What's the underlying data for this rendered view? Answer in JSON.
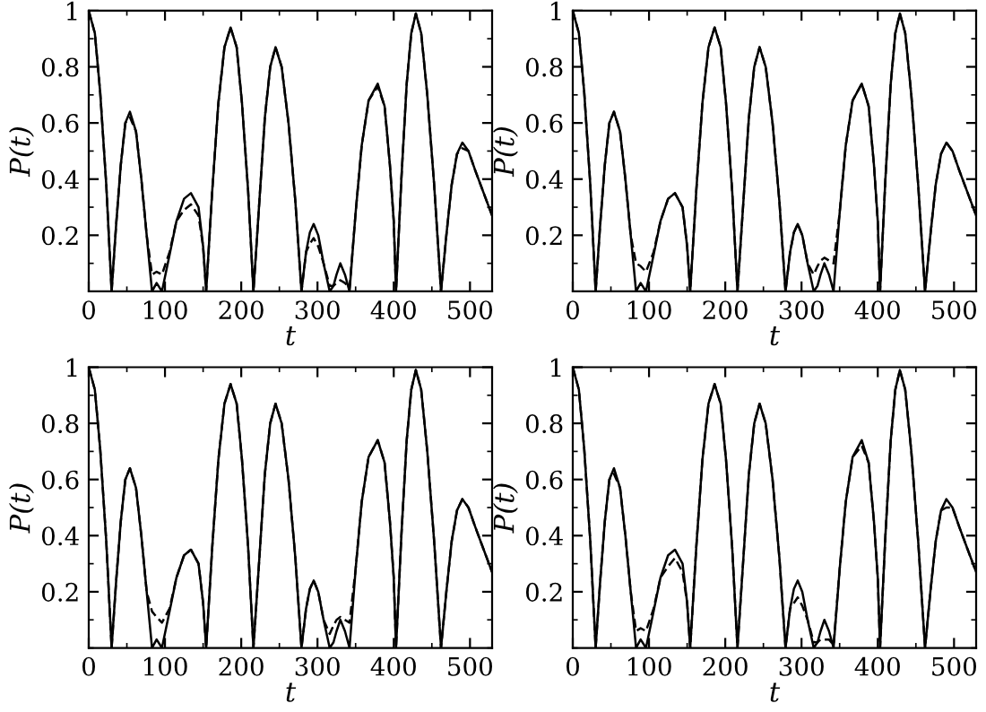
{
  "chart_data": [
    {
      "type": "line",
      "xlabel": "t",
      "ylabel": "P(t)",
      "xlim": [
        0,
        529
      ],
      "ylim": [
        0,
        1
      ],
      "xticks": [
        0,
        100,
        200,
        300,
        400,
        500
      ],
      "yticks": [
        0.2,
        0.4,
        0.6,
        0.8,
        1
      ],
      "grid": false,
      "legend": false,
      "x": [
        0,
        8,
        15,
        23,
        30,
        36,
        42,
        48,
        54,
        62,
        69,
        76,
        83,
        89,
        96,
        106,
        115,
        125,
        134,
        144,
        150,
        154,
        162,
        170,
        178,
        186,
        194,
        201,
        209,
        216,
        224,
        231,
        238,
        245,
        253,
        262,
        271,
        279,
        285,
        290,
        295,
        301,
        308,
        316,
        321,
        325,
        330,
        336,
        342,
        350,
        358,
        367,
        379,
        388,
        395,
        400,
        403,
        410,
        417,
        423,
        429,
        436,
        444,
        453,
        462,
        469,
        476,
        483,
        490,
        498,
        507,
        518,
        529
      ],
      "series": [
        {
          "color": "#000000",
          "line_style": "solid",
          "values": [
            1,
            0.92,
            0.71,
            0.38,
            0,
            0.24,
            0.45,
            0.6,
            0.64,
            0.57,
            0.4,
            0.2,
            0,
            0.03,
            0,
            0.13,
            0.25,
            0.33,
            0.35,
            0.3,
            0.16,
            0,
            0.36,
            0.67,
            0.87,
            0.94,
            0.87,
            0.67,
            0.36,
            0,
            0.33,
            0.62,
            0.8,
            0.87,
            0.8,
            0.6,
            0.32,
            0,
            0.14,
            0.21,
            0.24,
            0.2,
            0.1,
            0,
            0.02,
            0.06,
            0.1,
            0.06,
            0,
            0.28,
            0.52,
            0.68,
            0.74,
            0.66,
            0.45,
            0.25,
            0,
            0.4,
            0.74,
            0.92,
            0.99,
            0.92,
            0.7,
            0.38,
            0,
            0.2,
            0.38,
            0.49,
            0.53,
            0.5,
            0.43,
            0.35,
            0.27
          ]
        },
        {
          "color": "#000000",
          "line_style": "dashed",
          "values": [
            1,
            0.92,
            0.71,
            0.38,
            0,
            0.24,
            0.45,
            0.6,
            0.62,
            0.57,
            0.4,
            0.2,
            0.06,
            0.07,
            0.06,
            0.14,
            0.25,
            0.29,
            0.31,
            0.27,
            0.16,
            0,
            0.36,
            0.67,
            0.87,
            0.94,
            0.87,
            0.67,
            0.36,
            0,
            0.33,
            0.62,
            0.8,
            0.87,
            0.8,
            0.6,
            0.32,
            0,
            0.14,
            0.17,
            0.19,
            0.16,
            0.1,
            0.02,
            0.02,
            0.03,
            0.04,
            0.03,
            0.01,
            0.28,
            0.52,
            0.68,
            0.73,
            0.66,
            0.45,
            0.25,
            0,
            0.4,
            0.74,
            0.92,
            0.99,
            0.92,
            0.7,
            0.38,
            0,
            0.2,
            0.38,
            0.49,
            0.51,
            0.5,
            0.43,
            0.35,
            0.27
          ]
        }
      ]
    },
    {
      "type": "line",
      "xlabel": "t",
      "ylabel": "P(t)",
      "xlim": [
        0,
        529
      ],
      "ylim": [
        0,
        1
      ],
      "xticks": [
        0,
        100,
        200,
        300,
        400,
        500
      ],
      "yticks": [
        0.2,
        0.4,
        0.6,
        0.8,
        1
      ],
      "grid": false,
      "legend": false,
      "x": [
        0,
        8,
        15,
        23,
        30,
        36,
        42,
        48,
        54,
        62,
        69,
        76,
        83,
        89,
        96,
        106,
        115,
        125,
        134,
        144,
        150,
        154,
        162,
        170,
        178,
        186,
        194,
        201,
        209,
        216,
        224,
        231,
        238,
        245,
        253,
        262,
        271,
        279,
        285,
        290,
        295,
        301,
        308,
        316,
        321,
        325,
        330,
        336,
        342,
        350,
        358,
        367,
        379,
        388,
        395,
        400,
        403,
        410,
        417,
        423,
        429,
        436,
        444,
        453,
        462,
        469,
        476,
        483,
        490,
        498,
        507,
        518,
        529
      ],
      "series": [
        {
          "color": "#000000",
          "line_style": "solid",
          "values": [
            1,
            0.92,
            0.71,
            0.38,
            0,
            0.24,
            0.45,
            0.6,
            0.64,
            0.57,
            0.4,
            0.2,
            0,
            0.03,
            0,
            0.13,
            0.25,
            0.33,
            0.35,
            0.3,
            0.16,
            0,
            0.36,
            0.67,
            0.87,
            0.94,
            0.87,
            0.67,
            0.36,
            0,
            0.33,
            0.62,
            0.8,
            0.87,
            0.8,
            0.6,
            0.32,
            0,
            0.14,
            0.21,
            0.24,
            0.2,
            0.1,
            0,
            0.02,
            0.06,
            0.1,
            0.06,
            0,
            0.28,
            0.52,
            0.68,
            0.74,
            0.66,
            0.45,
            0.25,
            0,
            0.4,
            0.74,
            0.92,
            0.99,
            0.92,
            0.7,
            0.38,
            0,
            0.2,
            0.38,
            0.49,
            0.53,
            0.5,
            0.43,
            0.35,
            0.27
          ]
        },
        {
          "color": "#000000",
          "line_style": "dashed",
          "values": [
            1,
            0.92,
            0.71,
            0.38,
            0,
            0.24,
            0.45,
            0.6,
            0.64,
            0.57,
            0.4,
            0.2,
            0.1,
            0.09,
            0.07,
            0.14,
            0.25,
            0.33,
            0.35,
            0.3,
            0.16,
            0,
            0.36,
            0.67,
            0.87,
            0.94,
            0.87,
            0.67,
            0.36,
            0,
            0.33,
            0.62,
            0.8,
            0.87,
            0.8,
            0.6,
            0.32,
            0,
            0.14,
            0.21,
            0.24,
            0.2,
            0.1,
            0.06,
            0.09,
            0.11,
            0.12,
            0.11,
            0.1,
            0.28,
            0.52,
            0.68,
            0.74,
            0.66,
            0.45,
            0.25,
            0,
            0.4,
            0.74,
            0.92,
            0.99,
            0.92,
            0.7,
            0.38,
            0,
            0.2,
            0.38,
            0.49,
            0.53,
            0.5,
            0.43,
            0.35,
            0.27
          ]
        }
      ]
    },
    {
      "type": "line",
      "xlabel": "t",
      "ylabel": "P(t)",
      "xlim": [
        0,
        529
      ],
      "ylim": [
        0,
        1
      ],
      "xticks": [
        0,
        100,
        200,
        300,
        400,
        500
      ],
      "yticks": [
        0.2,
        0.4,
        0.6,
        0.8,
        1
      ],
      "grid": false,
      "legend": false,
      "x": [
        0,
        8,
        15,
        23,
        30,
        36,
        42,
        48,
        54,
        62,
        69,
        76,
        83,
        89,
        96,
        106,
        115,
        125,
        134,
        144,
        150,
        154,
        162,
        170,
        178,
        186,
        194,
        201,
        209,
        216,
        224,
        231,
        238,
        245,
        253,
        262,
        271,
        279,
        285,
        290,
        295,
        301,
        308,
        316,
        321,
        325,
        330,
        336,
        342,
        350,
        358,
        367,
        379,
        388,
        395,
        400,
        403,
        410,
        417,
        423,
        429,
        436,
        444,
        453,
        462,
        469,
        476,
        483,
        490,
        498,
        507,
        518,
        529
      ],
      "series": [
        {
          "color": "#000000",
          "line_style": "solid",
          "values": [
            1,
            0.92,
            0.71,
            0.38,
            0,
            0.24,
            0.45,
            0.6,
            0.64,
            0.57,
            0.4,
            0.2,
            0,
            0.03,
            0,
            0.13,
            0.25,
            0.33,
            0.35,
            0.3,
            0.16,
            0,
            0.36,
            0.67,
            0.87,
            0.94,
            0.87,
            0.67,
            0.36,
            0,
            0.33,
            0.62,
            0.8,
            0.87,
            0.8,
            0.6,
            0.32,
            0,
            0.14,
            0.21,
            0.24,
            0.2,
            0.1,
            0,
            0.02,
            0.06,
            0.1,
            0.06,
            0,
            0.28,
            0.52,
            0.68,
            0.74,
            0.66,
            0.45,
            0.25,
            0,
            0.4,
            0.74,
            0.92,
            0.99,
            0.92,
            0.7,
            0.38,
            0,
            0.2,
            0.38,
            0.49,
            0.53,
            0.5,
            0.43,
            0.35,
            0.27
          ]
        },
        {
          "color": "#000000",
          "line_style": "dashed",
          "values": [
            1,
            0.92,
            0.71,
            0.38,
            0,
            0.24,
            0.45,
            0.6,
            0.64,
            0.57,
            0.4,
            0.2,
            0.13,
            0.11,
            0.09,
            0.14,
            0.25,
            0.33,
            0.35,
            0.3,
            0.16,
            0,
            0.36,
            0.67,
            0.87,
            0.94,
            0.87,
            0.67,
            0.36,
            0,
            0.33,
            0.62,
            0.8,
            0.87,
            0.8,
            0.6,
            0.32,
            0,
            0.14,
            0.21,
            0.24,
            0.2,
            0.1,
            0.05,
            0.08,
            0.1,
            0.11,
            0.1,
            0.09,
            0.28,
            0.52,
            0.68,
            0.74,
            0.66,
            0.45,
            0.25,
            0,
            0.4,
            0.74,
            0.92,
            0.99,
            0.92,
            0.7,
            0.38,
            0,
            0.2,
            0.38,
            0.49,
            0.53,
            0.5,
            0.43,
            0.35,
            0.27
          ]
        }
      ]
    },
    {
      "type": "line",
      "xlabel": "t",
      "ylabel": "P(t)",
      "xlim": [
        0,
        529
      ],
      "ylim": [
        0,
        1
      ],
      "xticks": [
        0,
        100,
        200,
        300,
        400,
        500
      ],
      "yticks": [
        0.2,
        0.4,
        0.6,
        0.8,
        1
      ],
      "grid": false,
      "legend": false,
      "x": [
        0,
        8,
        15,
        23,
        30,
        36,
        42,
        48,
        54,
        62,
        69,
        76,
        83,
        89,
        96,
        106,
        115,
        125,
        134,
        144,
        150,
        154,
        162,
        170,
        178,
        186,
        194,
        201,
        209,
        216,
        224,
        231,
        238,
        245,
        253,
        262,
        271,
        279,
        285,
        290,
        295,
        301,
        308,
        316,
        321,
        325,
        330,
        336,
        342,
        350,
        358,
        367,
        379,
        388,
        395,
        400,
        403,
        410,
        417,
        423,
        429,
        436,
        444,
        453,
        462,
        469,
        476,
        483,
        490,
        498,
        507,
        518,
        529
      ],
      "series": [
        {
          "color": "#000000",
          "line_style": "solid",
          "values": [
            1,
            0.92,
            0.71,
            0.38,
            0,
            0.24,
            0.45,
            0.6,
            0.64,
            0.57,
            0.4,
            0.2,
            0,
            0.03,
            0,
            0.13,
            0.25,
            0.33,
            0.35,
            0.3,
            0.16,
            0,
            0.36,
            0.67,
            0.87,
            0.94,
            0.87,
            0.67,
            0.36,
            0,
            0.33,
            0.62,
            0.8,
            0.87,
            0.8,
            0.6,
            0.32,
            0,
            0.14,
            0.21,
            0.24,
            0.2,
            0.1,
            0,
            0.02,
            0.06,
            0.1,
            0.06,
            0,
            0.28,
            0.52,
            0.68,
            0.74,
            0.66,
            0.45,
            0.25,
            0,
            0.4,
            0.74,
            0.92,
            0.99,
            0.92,
            0.7,
            0.38,
            0,
            0.2,
            0.38,
            0.49,
            0.53,
            0.5,
            0.43,
            0.35,
            0.27
          ]
        },
        {
          "color": "#000000",
          "line_style": "dashed",
          "values": [
            1,
            0.92,
            0.71,
            0.38,
            0,
            0.24,
            0.45,
            0.6,
            0.62,
            0.57,
            0.4,
            0.2,
            0.06,
            0.07,
            0.06,
            0.14,
            0.25,
            0.29,
            0.32,
            0.27,
            0.16,
            0,
            0.36,
            0.67,
            0.87,
            0.94,
            0.87,
            0.67,
            0.36,
            0,
            0.33,
            0.62,
            0.8,
            0.87,
            0.8,
            0.6,
            0.32,
            0,
            0.14,
            0.16,
            0.18,
            0.15,
            0.1,
            0.02,
            0.02,
            0.03,
            0.03,
            0.03,
            0.01,
            0.28,
            0.52,
            0.68,
            0.72,
            0.66,
            0.45,
            0.25,
            0,
            0.4,
            0.74,
            0.92,
            0.99,
            0.92,
            0.7,
            0.38,
            0,
            0.2,
            0.38,
            0.49,
            0.5,
            0.5,
            0.43,
            0.35,
            0.27
          ]
        }
      ]
    }
  ]
}
